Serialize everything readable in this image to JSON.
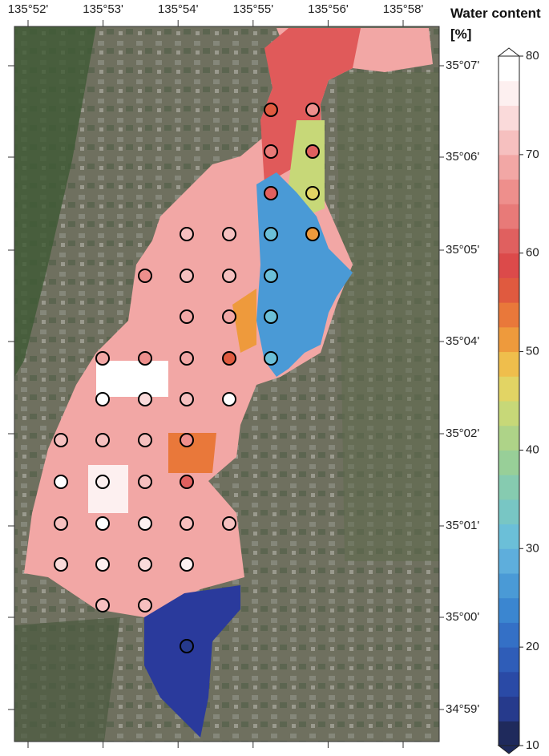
{
  "map": {
    "lon_labels": [
      "135°52'",
      "135°53'",
      "135°54'",
      "135°55'",
      "135°56'",
      "135°58'"
    ],
    "lat_labels": [
      "35°07'",
      "35°06'",
      "35°05'",
      "35°04'",
      "35°02'",
      "35°01'",
      "35°00'",
      "34°59'"
    ],
    "colorbar": {
      "title": "Water content [%]",
      "lim": [
        10,
        80
      ],
      "ticks": [
        10,
        20,
        30,
        40,
        50,
        60,
        70,
        80
      ],
      "colors": [
        "#1f2a5c",
        "#263a8c",
        "#2a4aa6",
        "#2f5db8",
        "#3470c6",
        "#3b86d0",
        "#4a9ad6",
        "#5eaedc",
        "#6bbfd8",
        "#78c6c4",
        "#86cbb0",
        "#98cf98",
        "#aed388",
        "#c7d878",
        "#e2d464",
        "#efbe4c",
        "#ee9a3c",
        "#e9783a",
        "#e05a3f",
        "#dc4a4a",
        "#e0605f",
        "#e87a78",
        "#ee8f8c",
        "#f2a7a5",
        "#f6c0bf",
        "#fadada",
        "#fdf0f0",
        "#ffffff"
      ]
    },
    "samples": [
      57,
      65,
      64,
      60,
      62,
      45,
      70,
      70,
      32,
      52,
      67,
      70,
      70,
      32,
      68,
      68,
      32,
      68,
      65,
      68,
      55,
      32,
      78,
      74,
      72,
      78,
      70,
      72,
      72,
      66,
      80,
      75,
      72,
      60,
      72,
      78,
      76,
      72,
      72,
      74,
      76,
      74,
      76,
      72,
      70,
      14
    ]
  }
}
